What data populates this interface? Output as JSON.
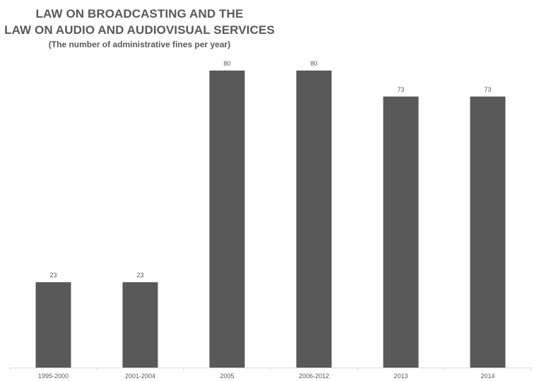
{
  "chart_data": {
    "type": "bar",
    "title": [
      "LAW ON BROADCASTING AND THE",
      "LAW ON AUDIO AND AUDIOVISUAL SERVICES"
    ],
    "subtitle": "(The number of administrative fines per year)",
    "categories": [
      "1995-2000",
      "2001-2004",
      "2005",
      "2006-2012",
      "2013",
      "2014"
    ],
    "values": [
      23,
      23,
      80,
      80,
      73,
      73
    ],
    "data_labels": [
      "23",
      "23",
      "80",
      "80",
      "73",
      "73"
    ],
    "bar_color": "#595959",
    "axis_color": "#d9d9d9",
    "grid": false,
    "legend": "none",
    "ylim": [
      0,
      80
    ]
  }
}
